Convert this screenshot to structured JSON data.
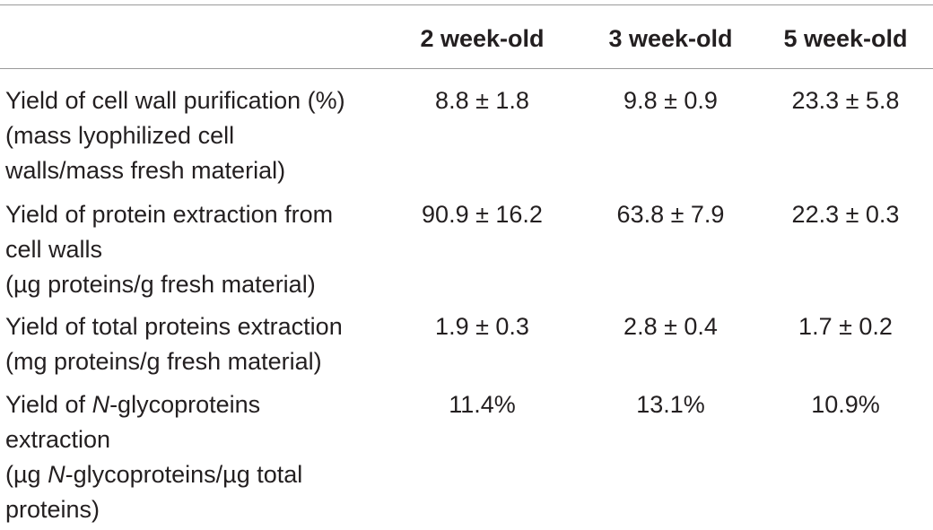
{
  "header": {
    "col1": "2 week-old",
    "col2": "3 week-old",
    "col3": "5 week-old"
  },
  "rows": [
    {
      "label_lines": [
        "Yield of cell wall purification (%)",
        "(mass lyophilized cell",
        "walls/mass fresh material)"
      ],
      "values": [
        "8.8 ± 1.8",
        "9.8 ± 0.9",
        "23.3 ± 5.8"
      ]
    },
    {
      "label_lines": [
        "Yield of protein extraction from",
        "cell walls",
        "(µg proteins/g fresh material)"
      ],
      "values": [
        "90.9 ± 16.2",
        "63.8 ± 7.9",
        "22.3 ± 0.3"
      ]
    },
    {
      "label_lines": [
        "Yield of total proteins extraction",
        "(mg proteins/g fresh material)"
      ],
      "values": [
        "1.9 ± 0.3",
        "2.8 ± 0.4",
        "1.7 ± 0.2"
      ]
    },
    {
      "label_lines": [
        "Yield of ",
        "N",
        "-glycoproteins",
        "extraction",
        "(µg ",
        "N",
        "-glycoproteins/µg total",
        "proteins)"
      ],
      "values": [
        "11.4%",
        "13.1%",
        "10.9%"
      ]
    }
  ]
}
